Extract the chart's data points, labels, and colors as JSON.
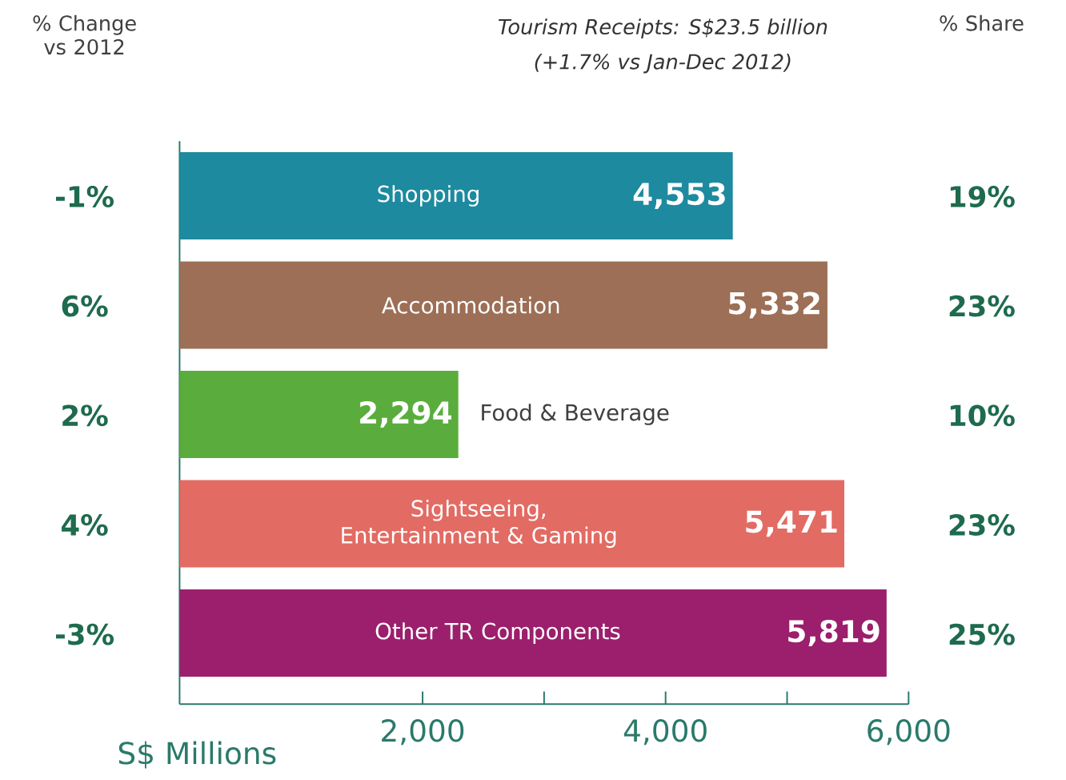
{
  "chart_data": {
    "type": "bar",
    "orientation": "horizontal",
    "title": "Tourism Receipts: S$23.5 billion",
    "subtitle": "(+1.7% vs Jan-Dec 2012)",
    "xlabel": "S$ Millions",
    "categories": [
      "Shopping",
      "Accommodation",
      "Food & Beverage",
      "Sightseeing, Entertainment & Gaming",
      "Other TR Components"
    ],
    "values": [
      4553,
      5332,
      2294,
      5471,
      5819
    ],
    "value_labels": [
      "4,553",
      "5,332",
      "2,294",
      "5,471",
      "5,819"
    ],
    "colors": [
      "#1d8aa0",
      "#9c6f56",
      "#5aad3c",
      "#e26b63",
      "#9b1f6c"
    ],
    "xlim": [
      0,
      6000
    ],
    "xticks": [
      {
        "value": 2000,
        "label": "2,000"
      },
      {
        "value": 3000,
        "label": null
      },
      {
        "value": 4000,
        "label": "4,000"
      },
      {
        "value": 5000,
        "label": null
      },
      {
        "value": 6000,
        "label": "6,000"
      }
    ],
    "annotations": [
      "% Change vs 2012",
      "-1%",
      "6%",
      "2%",
      "4%",
      "-3%",
      "% Share",
      "19%",
      "23%",
      "10%",
      "23%",
      "25%"
    ]
  }
}
